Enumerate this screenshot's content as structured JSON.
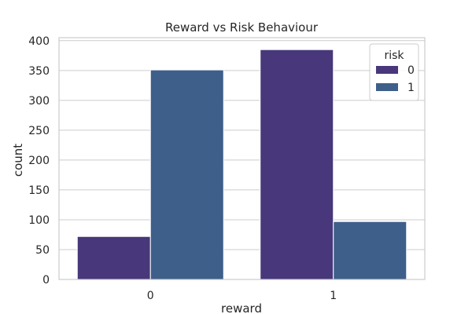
{
  "chart_data": {
    "type": "bar",
    "title": "Reward vs Risk Behaviour",
    "xlabel": "reward",
    "ylabel": "count",
    "categories": [
      "0",
      "1"
    ],
    "series": [
      {
        "name": "0",
        "values": [
          72,
          385
        ],
        "color": "#48377a"
      },
      {
        "name": "1",
        "values": [
          351,
          97
        ],
        "color": "#3e5f8a"
      }
    ],
    "ylim": [
      0,
      405
    ],
    "yticks": [
      0,
      50,
      100,
      150,
      200,
      250,
      300,
      350,
      400
    ],
    "grid": true,
    "legend": {
      "title": "risk",
      "position": "top-right"
    }
  }
}
